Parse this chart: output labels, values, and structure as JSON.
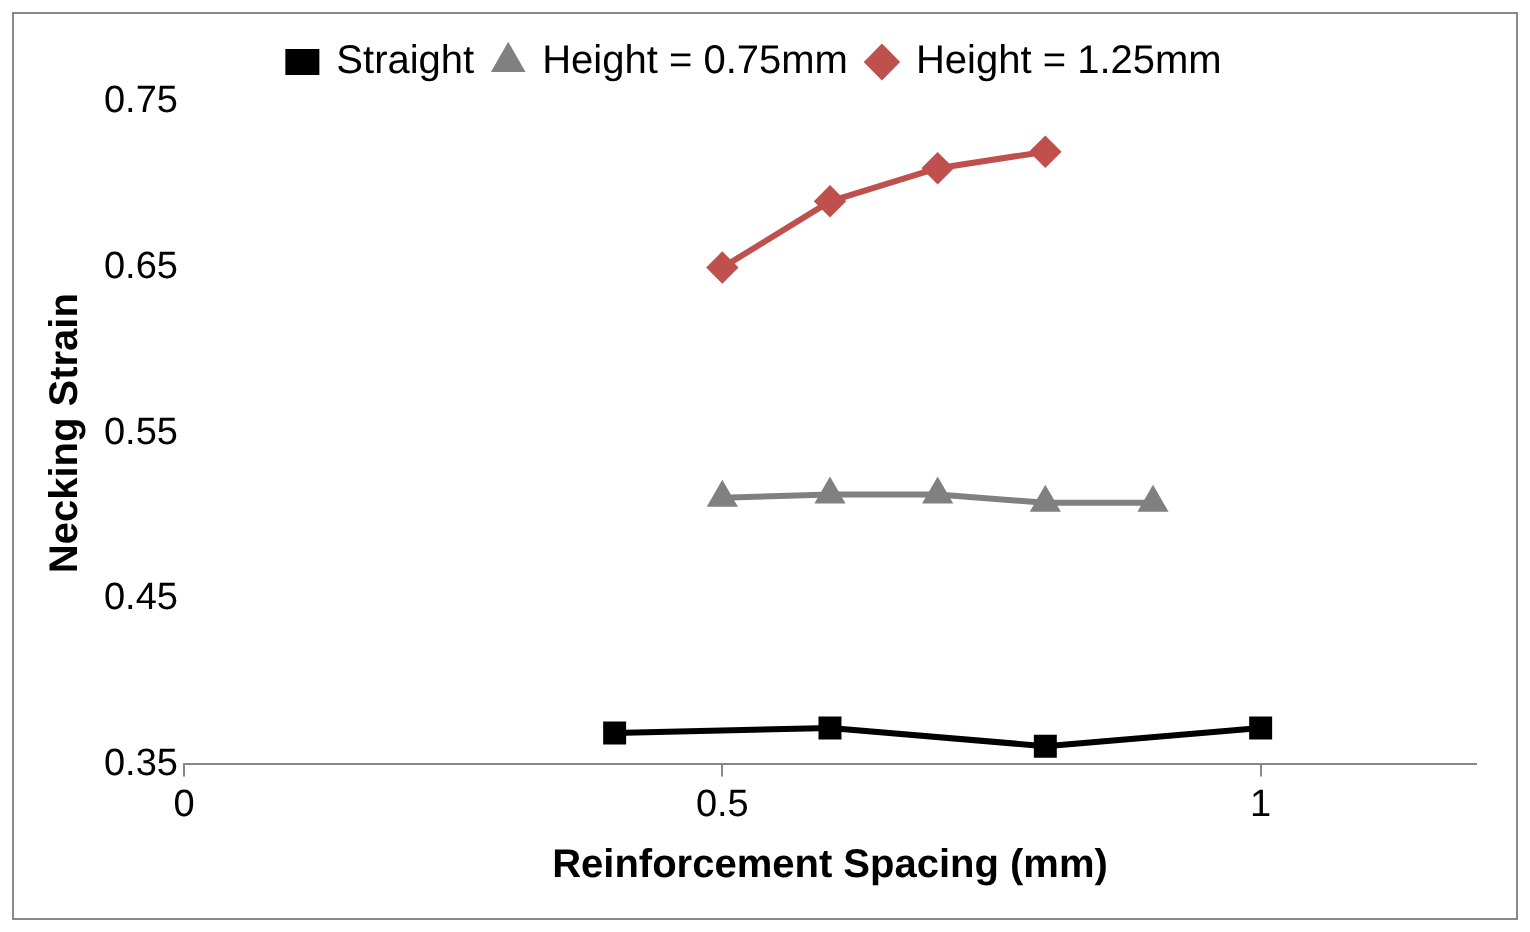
{
  "chart_data": {
    "type": "line",
    "xlabel": "Reinforcement Spacing (mm)",
    "ylabel": "Necking Strain",
    "xlim": [
      0,
      1.2
    ],
    "xticks": [
      0,
      0.5,
      1
    ],
    "ylim": [
      0.35,
      0.75
    ],
    "yticks": [
      0.35,
      0.45,
      0.55,
      0.65,
      0.75
    ],
    "grid": false,
    "legend": "top",
    "line_style": "solid",
    "series": [
      {
        "name": "Straight",
        "color": "#000000",
        "marker": "square",
        "x": [
          0.4,
          0.6,
          0.8,
          1.0
        ],
        "values": [
          0.369,
          0.372,
          0.361,
          0.372
        ]
      },
      {
        "name": "Height = 0.75mm",
        "color": "#808080",
        "marker": "triangle",
        "x": [
          0.5,
          0.6,
          0.7,
          0.8,
          0.9
        ],
        "values": [
          0.511,
          0.513,
          0.513,
          0.508,
          0.508
        ]
      },
      {
        "name": "Height = 1.25mm",
        "color": "#c0504d",
        "marker": "diamond",
        "x": [
          0.5,
          0.6,
          0.7,
          0.8
        ],
        "values": [
          0.65,
          0.69,
          0.71,
          0.72
        ]
      }
    ]
  }
}
